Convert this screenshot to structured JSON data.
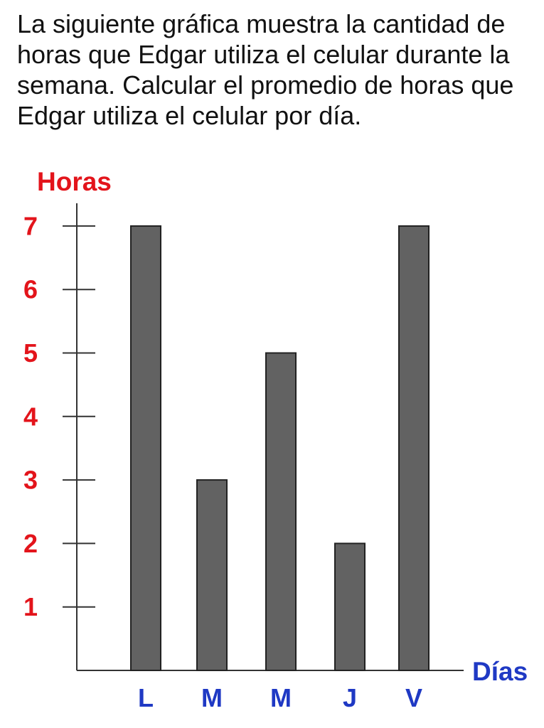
{
  "problem": {
    "text": "La siguiente gráfica muestra la cantidad de horas que Edgar utiliza el celular durante la semana. Calcular el promedio de horas que Edgar utiliza el celular por día."
  },
  "colors": {
    "bar": "#626262",
    "bar_outline": "#222222",
    "axis": "#333333",
    "ylabel": "#e3141b",
    "xlabel": "#1f39c4"
  },
  "chart_data": {
    "type": "bar",
    "categories": [
      "L",
      "M",
      "M",
      "J",
      "V"
    ],
    "values": [
      7,
      3,
      5,
      2,
      7
    ],
    "title": "",
    "xlabel": "Días",
    "ylabel": "Horas",
    "ylim": [
      0,
      7
    ],
    "yticks": [
      1,
      2,
      3,
      4,
      5,
      6,
      7
    ],
    "grid": false,
    "legend": "none"
  }
}
